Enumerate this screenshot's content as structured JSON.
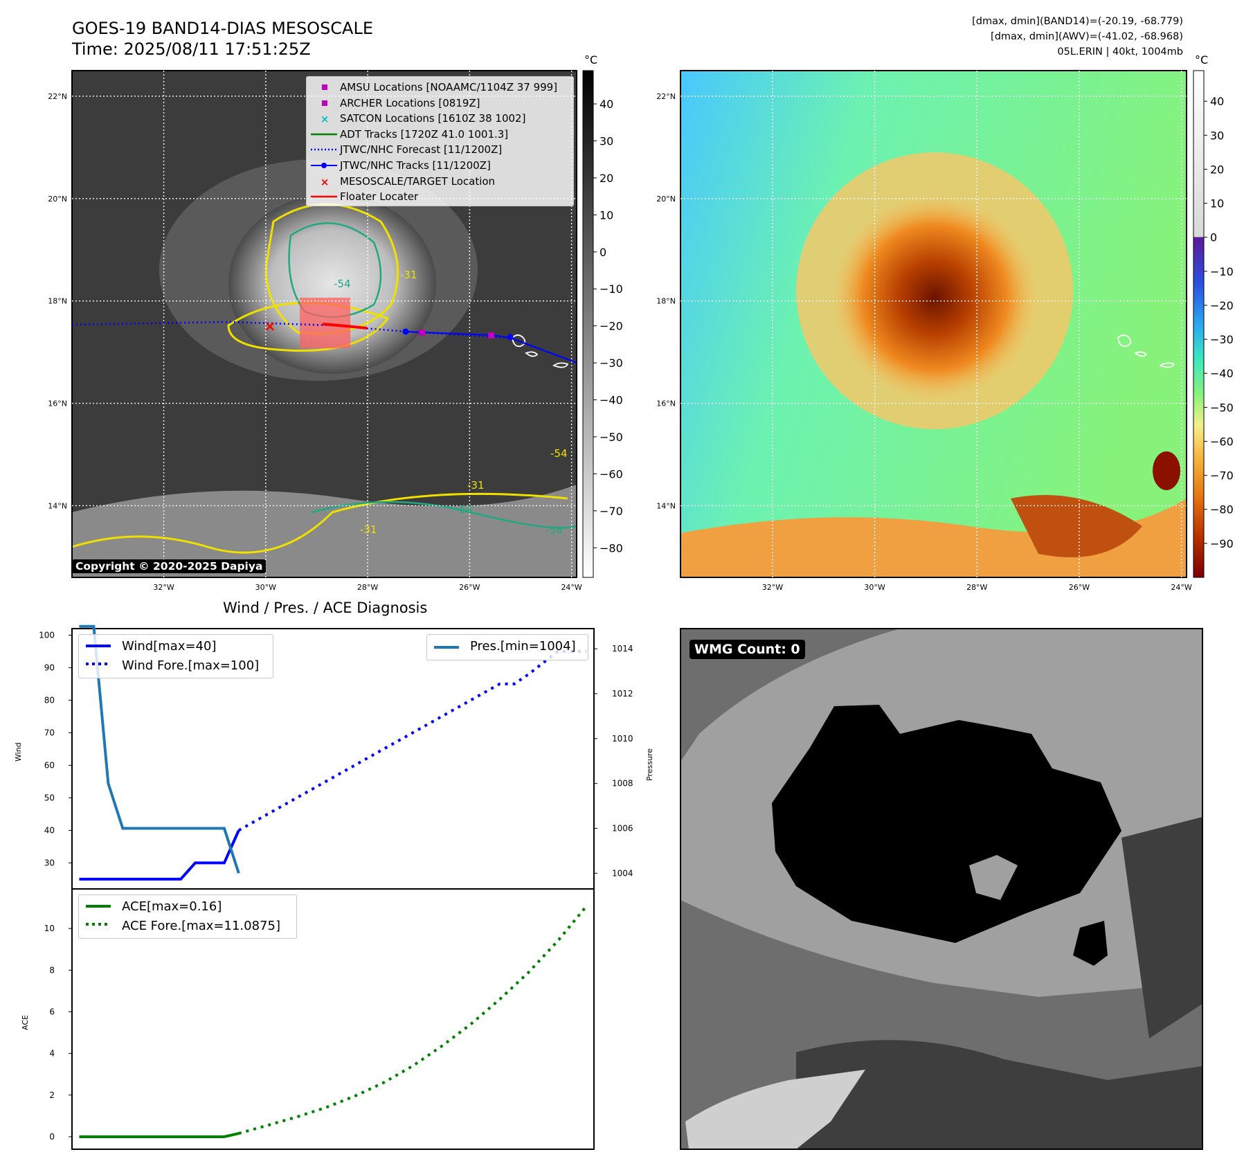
{
  "header": {
    "title_line1": "GOES-19 BAND14-DIAS MESOSCALE",
    "title_line2": "Time: 2025/08/11 17:51:25Z",
    "info_line1": "[dmax, dmin](BAND14)=(-20.19, -68.779)",
    "info_line2": "[dmax, dmin](AWV)=(-41.02, -68.968)",
    "info_line3": "05L.ERIN | 40kt, 1004mb"
  },
  "map_axes": {
    "lat_labels": [
      "22°N",
      "20°N",
      "18°N",
      "16°N",
      "14°N"
    ],
    "lon_labels": [
      "32°W",
      "30°W",
      "28°W",
      "26°W",
      "24°W"
    ],
    "lat_range": [
      12.6,
      22.5
    ],
    "lon_range": [
      -33.8,
      -23.9
    ]
  },
  "colorbar_left": {
    "unit": "°C",
    "ticks": [
      "40",
      "30",
      "20",
      "10",
      "0",
      "−10",
      "−20",
      "−30",
      "−40",
      "−50",
      "−60",
      "−70",
      "−80"
    ],
    "range": [
      -88,
      49
    ]
  },
  "colorbar_right": {
    "unit": "°C",
    "ticks": [
      "40",
      "30",
      "20",
      "10",
      "0",
      "−10",
      "−20",
      "−30",
      "−40",
      "−50",
      "−60",
      "−70",
      "−80",
      "−90"
    ],
    "range": [
      -100,
      49
    ]
  },
  "map_legend": {
    "items": [
      {
        "label": "AMSU Locations [NOAAMC/1104Z 37 999]",
        "color": "#bf00bf",
        "symbol": "square"
      },
      {
        "label": "ARCHER Locations [0819Z]",
        "color": "#bf00bf",
        "symbol": "square"
      },
      {
        "label": "SATCON Locations [1610Z 38 1002]",
        "color": "#00bfbf",
        "symbol": "x"
      },
      {
        "label": "ADT Tracks [1720Z 41.0 1001.3]",
        "color": "#008000",
        "symbol": "line"
      },
      {
        "label": "JTWC/NHC Forecast [11/1200Z]",
        "color": "#0000ff",
        "symbol": "dotted"
      },
      {
        "label": "JTWC/NHC Tracks [11/1200Z]",
        "color": "#0000ff",
        "symbol": "line-dot"
      },
      {
        "label": "MESOSCALE/TARGET Location",
        "color": "#ff0000",
        "symbol": "x"
      },
      {
        "label": "Floater Locater",
        "color": "#ff0000",
        "symbol": "line"
      }
    ]
  },
  "contour_labels": [
    "-31",
    "-54",
    "-31",
    "-54",
    "-31",
    "-54",
    "-54"
  ],
  "copyright": "Copyright © 2020-2025 Dapiya",
  "diag": {
    "title": "Wind / Pres. / ACE Diagnosis",
    "wind_ylabel": "Wind",
    "pres_ylabel": "Pressure",
    "ace_ylabel": "ACE",
    "wind_ticks": [
      "100",
      "90",
      "80",
      "70",
      "60",
      "50",
      "40",
      "30"
    ],
    "pres_ticks": [
      "1014",
      "1012",
      "1010",
      "1008",
      "1006",
      "1004"
    ],
    "ace_ticks": [
      "10",
      "8",
      "6",
      "4",
      "2",
      "0"
    ],
    "legend_wind": [
      "Wind[max=40]",
      "Wind Fore.[max=100]"
    ],
    "legend_pres": "Pres.[min=1004]",
    "legend_ace": [
      "ACE[max=0.16]",
      "ACE Fore.[max=11.0875]"
    ]
  },
  "chart_data": [
    {
      "type": "line",
      "title": "Wind / Pres. / ACE Diagnosis",
      "ylabel": "Wind",
      "ylim": [
        22,
        102
      ],
      "series": [
        {
          "name": "Wind[max=40]",
          "color": "#0000ff",
          "style": "solid",
          "x": [
            0,
            1,
            2,
            3,
            4,
            5,
            6,
            7,
            8,
            9,
            10,
            11
          ],
          "y": [
            25,
            25,
            25,
            25,
            25,
            25,
            25,
            25,
            30,
            30,
            30,
            40
          ]
        },
        {
          "name": "Wind Fore.[max=100]",
          "color": "#0000ff",
          "style": "dotted",
          "x": [
            11,
            13,
            15,
            17,
            19,
            21,
            23,
            25,
            27,
            29,
            30,
            31,
            33,
            35
          ],
          "y": [
            40,
            45,
            50,
            55,
            60,
            65,
            70,
            75,
            80,
            85,
            85,
            88,
            95,
            95
          ]
        }
      ]
    },
    {
      "type": "line",
      "ylabel": "Pressure",
      "ylim": [
        1003.3,
        1014.9
      ],
      "series": [
        {
          "name": "Pres.[min=1004]",
          "color": "#1f77b4",
          "style": "solid",
          "x": [
            0,
            1,
            2,
            3,
            4,
            5,
            6,
            7,
            8,
            9,
            10,
            11
          ],
          "y": [
            1015,
            1015,
            1008,
            1006,
            1006,
            1006,
            1006,
            1006,
            1006,
            1006,
            1006,
            1004
          ]
        }
      ]
    },
    {
      "type": "line",
      "ylabel": "ACE",
      "ylim": [
        -0.6,
        11.9
      ],
      "series": [
        {
          "name": "ACE[max=0.16]",
          "color": "#008000",
          "style": "solid",
          "x": [
            0,
            1,
            2,
            3,
            4,
            5,
            6,
            7,
            8,
            9,
            10,
            11
          ],
          "y": [
            0,
            0,
            0,
            0,
            0,
            0,
            0,
            0,
            0,
            0,
            0,
            0.16
          ]
        },
        {
          "name": "ACE Fore.[max=11.0875]",
          "color": "#008000",
          "style": "dotted",
          "x": [
            11,
            13,
            15,
            17,
            19,
            21,
            23,
            25,
            27,
            29,
            31,
            33,
            35
          ],
          "y": [
            0.16,
            0.55,
            0.95,
            1.4,
            1.95,
            2.6,
            3.4,
            4.35,
            5.4,
            6.6,
            7.9,
            9.4,
            11.09
          ]
        }
      ]
    }
  ],
  "wmg": {
    "label": "WMG Count: 0"
  }
}
